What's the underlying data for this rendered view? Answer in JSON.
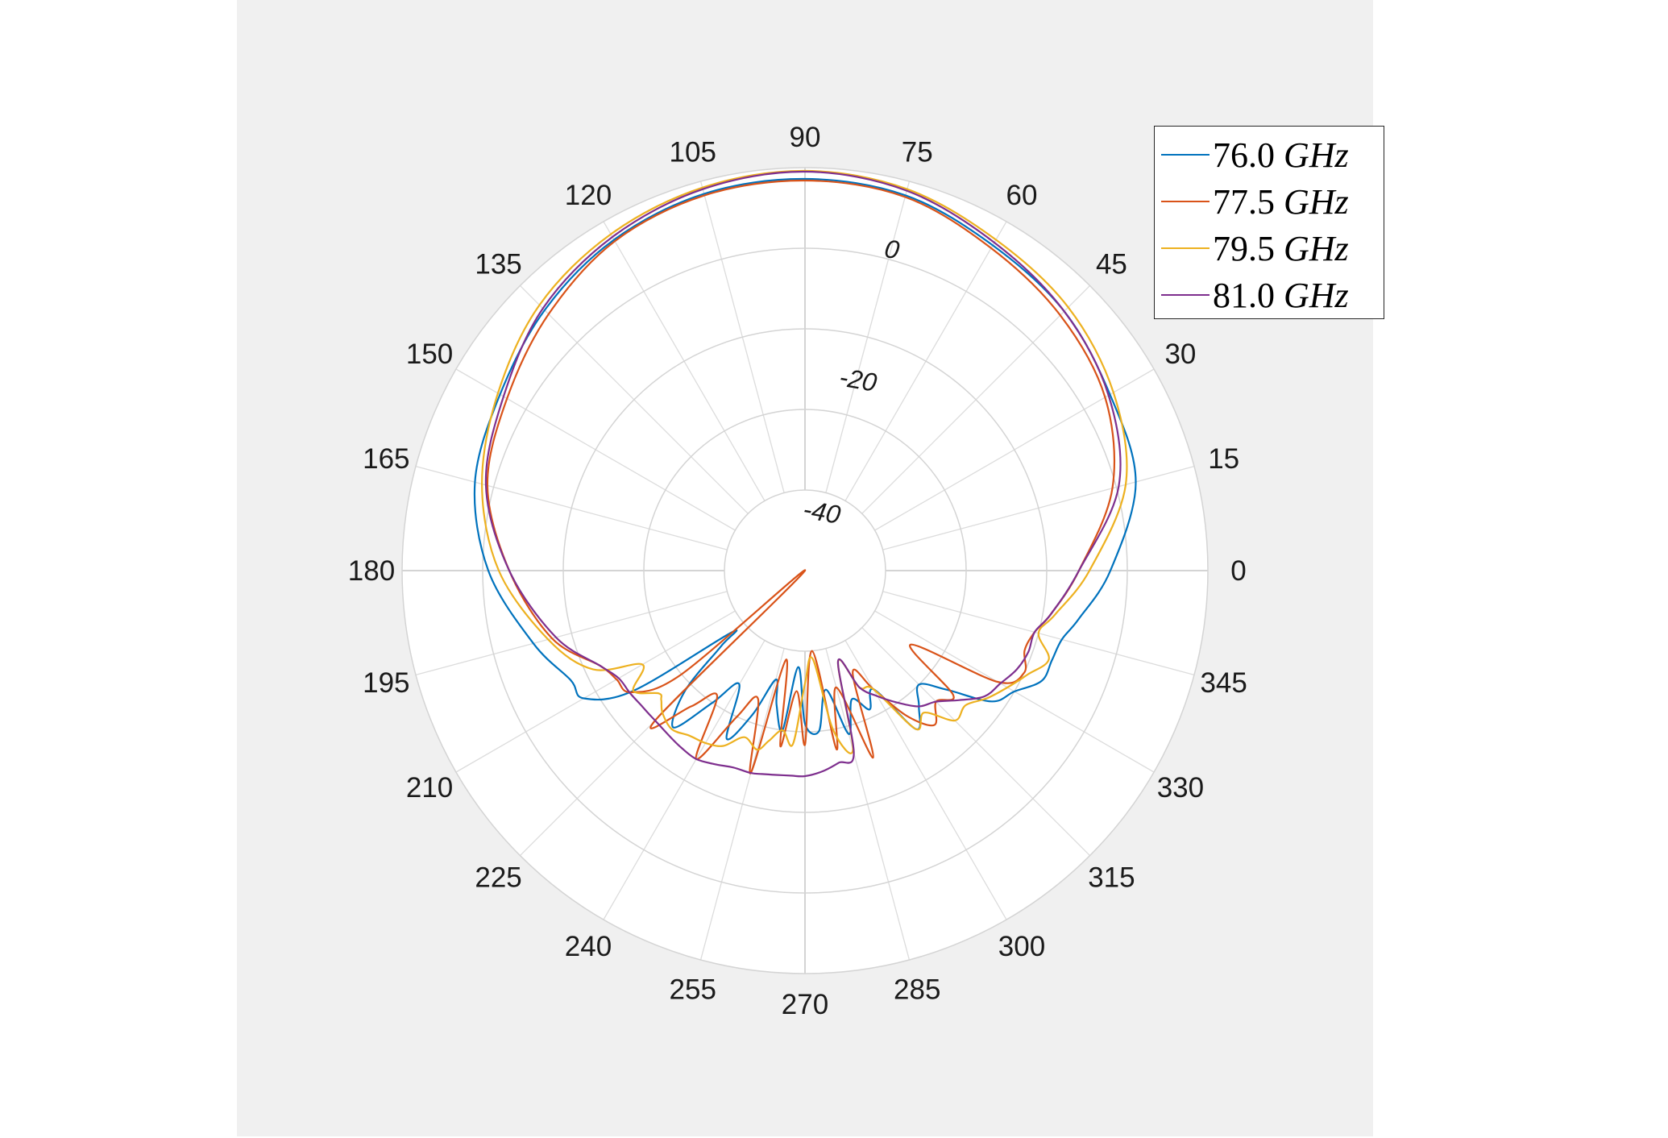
{
  "chart_data": {
    "type": "polar-line",
    "theta_unit": "degrees",
    "r_unit": "dB",
    "rlim": [
      -50,
      0
    ],
    "r_ticks": [
      -40,
      -30,
      -20,
      -10,
      0
    ],
    "r_tick_labels": [
      "-40",
      "-20",
      "0"
    ],
    "theta_tick_labels": [
      "0",
      "15",
      "30",
      "45",
      "60",
      "75",
      "90",
      "105",
      "120",
      "135",
      "150",
      "165",
      "180",
      "195",
      "210",
      "225",
      "240",
      "255",
      "270",
      "285",
      "300",
      "315",
      "330",
      "345"
    ],
    "grid": true,
    "legend_position": "top-right",
    "theta": [
      0,
      15,
      30,
      45,
      60,
      75,
      90,
      105,
      120,
      135,
      150,
      165,
      180,
      195,
      205,
      210,
      215,
      220,
      222,
      225,
      230,
      235,
      240,
      245,
      250,
      255,
      258,
      262,
      266,
      270,
      275,
      280,
      285,
      290,
      295,
      300,
      305,
      310,
      315,
      320,
      325,
      330,
      335,
      340,
      345,
      350
    ],
    "series": [
      {
        "name": "76.0 GHz",
        "color": "#0072BD",
        "values": [
          -12.1,
          -7.5,
          -6.3,
          -4.5,
          -3.4,
          -1.8,
          -1.4,
          -1.6,
          -2.6,
          -4.3,
          -6.3,
          -7.6,
          -10.7,
          -15.1,
          -17.9,
          -18.3,
          -24,
          -38,
          -36,
          -29,
          -24.6,
          -30,
          -33.7,
          -27,
          -31,
          -36,
          -33,
          -30,
          -38,
          -31,
          -30,
          -35,
          -29,
          -33,
          -31,
          -33,
          -26,
          -28,
          -30,
          -27,
          -21.7,
          -20,
          -17.6,
          -17.4,
          -17,
          -15.5
        ]
      },
      {
        "name": "77.5 GHz",
        "color": "#D95319",
        "values": [
          -16,
          -10.5,
          -7,
          -5.2,
          -3.8,
          -2,
          -1.6,
          -1.8,
          -2.8,
          -5,
          -7.3,
          -9.2,
          -13.3,
          -17.5,
          -22,
          -23,
          -23.7,
          -30,
          -50,
          -23.7,
          -28,
          -31,
          -23,
          -30,
          -33,
          -24,
          -38.7,
          -28,
          -35,
          -28.4,
          -40,
          -27.5,
          -35,
          -25.3,
          -36,
          -33,
          -28,
          -25,
          -27,
          -26,
          -34,
          -22.4,
          -20,
          -21,
          -20.5,
          -19
        ]
      },
      {
        "name": "79.5 GHz",
        "color": "#EDB120",
        "values": [
          -14.7,
          -8.8,
          -5.8,
          -3.8,
          -2.6,
          -1,
          -0.4,
          -0.8,
          -1.8,
          -3.4,
          -6,
          -8.5,
          -12,
          -17,
          -21,
          -26.7,
          -24,
          -26.3,
          -26,
          -25,
          -24.3,
          -25,
          -25.3,
          -26,
          -28,
          -27,
          -28.4,
          -30,
          -28.4,
          -36,
          -39,
          -30,
          -27,
          -38,
          -34,
          -33,
          -26,
          -27,
          -23.7,
          -24,
          -22.4,
          -21,
          -19.5,
          -17.8,
          -20,
          -18.5
        ]
      },
      {
        "name": "81.0 GHz",
        "color": "#7E2F8E",
        "values": [
          -16,
          -9.7,
          -6.5,
          -4.5,
          -3,
          -1.2,
          -0.5,
          -1,
          -2.2,
          -4,
          -6.8,
          -9,
          -13.3,
          -18,
          -22,
          -23.3,
          -23.5,
          -23.7,
          -23.7,
          -23.7,
          -23.5,
          -23.2,
          -23,
          -23.5,
          -24,
          -24,
          -24.2,
          -24.4,
          -24.5,
          -24.5,
          -25,
          -25.8,
          -26.6,
          -38,
          -34,
          -32,
          -30,
          -28,
          -27,
          -25,
          -22.8,
          -22,
          -21,
          -20.5,
          -20.5,
          -19
        ]
      }
    ]
  },
  "legend": {
    "items": [
      {
        "number": "76.0",
        "unit": "GHz"
      },
      {
        "number": "77.5",
        "unit": "GHz"
      },
      {
        "number": "79.5",
        "unit": "GHz"
      },
      {
        "number": "81.0",
        "unit": "GHz"
      }
    ]
  }
}
